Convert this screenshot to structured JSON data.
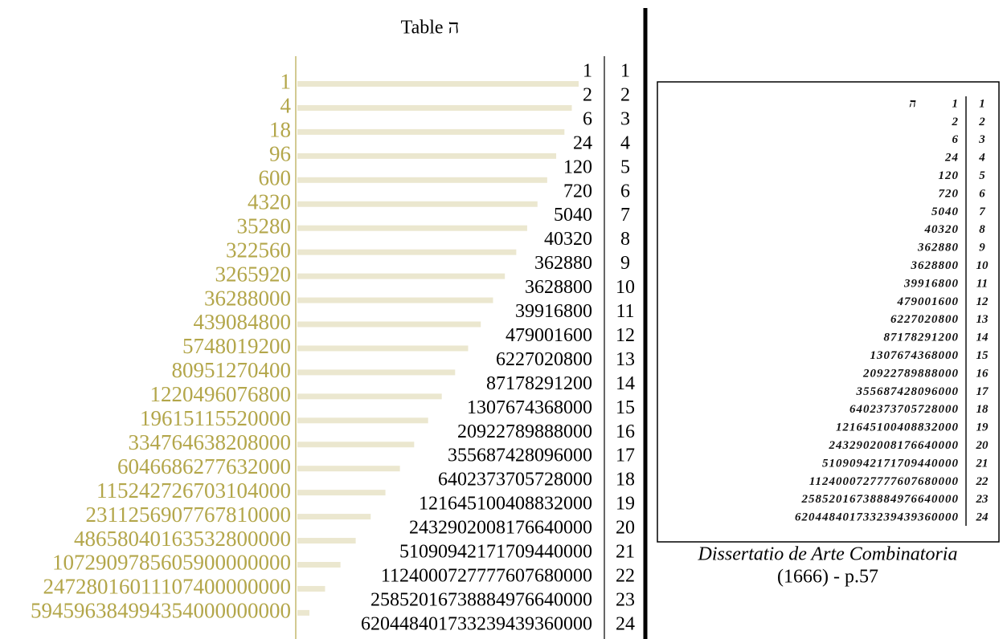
{
  "title": "Table ה",
  "table": {
    "n": [
      1,
      2,
      3,
      4,
      5,
      6,
      7,
      8,
      9,
      10,
      11,
      12,
      13,
      14,
      15,
      16,
      17,
      18,
      19,
      20,
      21,
      22,
      23,
      24
    ],
    "factorials": [
      "1",
      "2",
      "6",
      "24",
      "120",
      "720",
      "5040",
      "40320",
      "362880",
      "3628800",
      "39916800",
      "479001600",
      "6227020800",
      "87178291200",
      "1307674368000",
      "20922789888000",
      "355687428096000",
      "6402373705728000",
      "121645100408832000",
      "2432902008176640000",
      "51090942171709440000",
      "1124000727777607680000",
      "25852016738884976640000",
      "620448401733239439360000"
    ],
    "products": [
      "1",
      "4",
      "18",
      "96",
      "600",
      "4320",
      "35280",
      "322560",
      "3265920",
      "36288000",
      "439084800",
      "5748019200",
      "80951270400",
      "1220496076800",
      "19615115520000",
      "334764638208000",
      "6046686277632000",
      "115242726703104000",
      "2311256907767810000",
      "48658040163532800000",
      "1072909785605900000000",
      "24728016011107400000000",
      "594596384994354000000000"
    ]
  },
  "scan": {
    "letter": "ה",
    "caption": "Dissertatio de Arte Combinatoria",
    "source": "(1666) - p.57"
  }
}
